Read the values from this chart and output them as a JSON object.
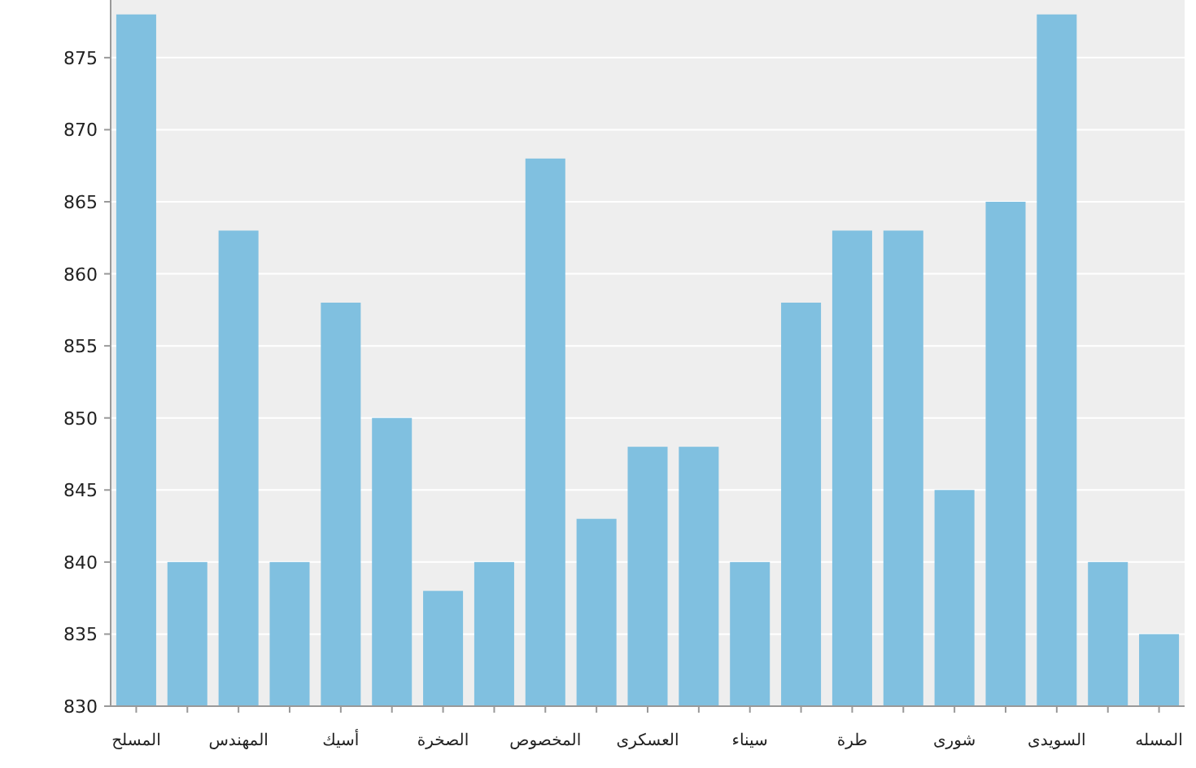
{
  "chart_data": {
    "type": "bar",
    "categories": [
      "المسلح",
      null,
      "المهندس",
      null,
      "أسيك",
      null,
      "الصخرة",
      null,
      "المخصوص",
      null,
      "العسكرى",
      null,
      "سيناء",
      null,
      "طرة",
      null,
      "شورى",
      null,
      "السويدى",
      null,
      "المسله"
    ],
    "values": [
      878,
      840,
      863,
      840,
      858,
      850,
      838,
      840,
      868,
      843,
      848,
      848,
      840,
      858,
      863,
      863,
      845,
      865,
      878,
      840,
      835
    ],
    "color": "#80c0e0",
    "ylim": [
      830,
      879
    ],
    "yticks": [
      830,
      835,
      840,
      845,
      850,
      855,
      860,
      865,
      870,
      875
    ],
    "grid": "y"
  }
}
